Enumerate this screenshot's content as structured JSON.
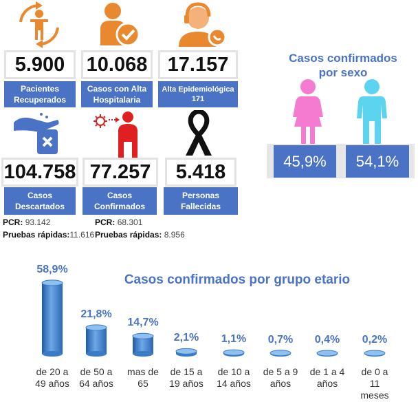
{
  "colors": {
    "accent": "#4a73c6",
    "orange": "#e8892f",
    "red": "#e02020",
    "pink": "#f47bcf",
    "cyan": "#5cd4f0",
    "bar": "#3a7bc8"
  },
  "cards": [
    {
      "icon": "recovered-person-icon",
      "value": "5.900",
      "label_lines": [
        "Pacientes",
        "Recuperados"
      ]
    },
    {
      "icon": "hospital-discharge-icon",
      "value": "10.068",
      "label_lines": [
        "Casos con Alta",
        "Hospitalaria"
      ]
    },
    {
      "icon": "operator-headset-icon",
      "value": "17.157",
      "label_lines": [
        "Alta Epidemiológica",
        "171"
      ]
    },
    {
      "icon": "hand-test-icon",
      "value": "104.758",
      "label_lines": [
        "Casos",
        "Descartados"
      ]
    },
    {
      "icon": "virus-person-icon",
      "value": "77.257",
      "label_lines": [
        "Casos",
        "Confirmados"
      ]
    },
    {
      "icon": "black-ribbon-icon",
      "value": "5.418",
      "label_lines": [
        "Personas",
        "Fallecidas"
      ]
    }
  ],
  "discarded_detail": {
    "pcr_label": "PCR:",
    "pcr_value": "93.142",
    "rapid_label": "Pruebas rápidas:",
    "rapid_value": "11.616"
  },
  "confirmed_detail": {
    "pcr_label": "PCR:",
    "pcr_value": "68.301",
    "rapid_label": "Pruebas rápidas:",
    "rapid_value": "8.956"
  },
  "sex": {
    "title_lines": [
      "Casos confirmados",
      "por sexo"
    ],
    "female_pct": "45,9%",
    "male_pct": "54,1%"
  },
  "chart_data": {
    "type": "bar",
    "title": "Casos confirmados por grupo etario",
    "categories": [
      [
        "de 20 a",
        "49 años"
      ],
      [
        "de 50 a",
        "64 años"
      ],
      [
        "mas de",
        "65"
      ],
      [
        "de 15 a",
        "19 años"
      ],
      [
        "de 10 a",
        "14 años"
      ],
      [
        "de 5 a 9",
        "años"
      ],
      [
        "de 1 a 4",
        "años"
      ],
      [
        "de 0 a",
        "11",
        "meses"
      ]
    ],
    "values": [
      58.9,
      21.8,
      14.7,
      2.1,
      1.1,
      0.7,
      0.4,
      0.2
    ],
    "value_labels": [
      "58,9%",
      "21,8%",
      "14,7%",
      "2,1%",
      "1,1%",
      "0,7%",
      "0,4%",
      "0,2%"
    ],
    "ylim": [
      0,
      60
    ],
    "grid": false
  }
}
